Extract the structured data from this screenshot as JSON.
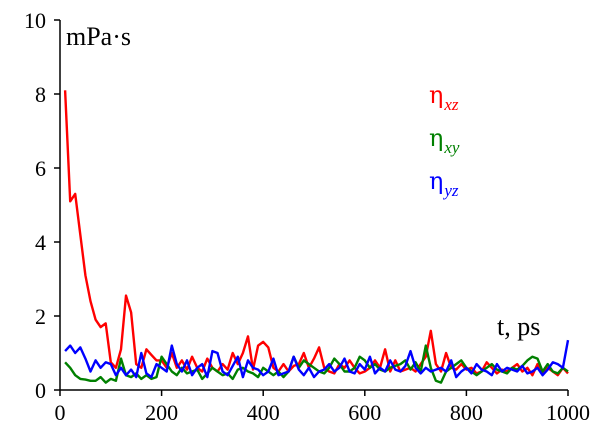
{
  "chart_data": {
    "type": "line",
    "title": "",
    "xlabel": "t, ps",
    "ylabel": "mPa·s",
    "xlim": [
      0,
      1000
    ],
    "ylim": [
      0,
      10
    ],
    "x_ticks": [
      "0",
      "200",
      "400",
      "600",
      "800",
      "1000"
    ],
    "y_ticks": [
      "0",
      "2",
      "4",
      "6",
      "8",
      "10"
    ],
    "grid": false,
    "legend_position": "right",
    "x": [
      10,
      20,
      30,
      40,
      50,
      60,
      70,
      80,
      90,
      100,
      110,
      120,
      130,
      140,
      150,
      160,
      170,
      180,
      190,
      200,
      210,
      220,
      230,
      240,
      250,
      260,
      270,
      280,
      290,
      300,
      310,
      320,
      330,
      340,
      350,
      360,
      370,
      380,
      390,
      400,
      410,
      420,
      430,
      440,
      450,
      460,
      470,
      480,
      490,
      500,
      510,
      520,
      530,
      540,
      550,
      560,
      570,
      580,
      590,
      600,
      610,
      620,
      630,
      640,
      650,
      660,
      670,
      680,
      690,
      700,
      710,
      720,
      730,
      740,
      750,
      760,
      770,
      780,
      790,
      800,
      810,
      820,
      830,
      840,
      850,
      860,
      870,
      880,
      890,
      900,
      910,
      920,
      930,
      940,
      950,
      960,
      970,
      980,
      990,
      1000
    ],
    "series": [
      {
        "name": "η",
        "subscript": "xz",
        "color": "#ff0000",
        "values": [
          8.1,
          5.1,
          5.3,
          4.2,
          3.1,
          2.4,
          1.9,
          1.7,
          1.8,
          0.75,
          0.6,
          1.1,
          2.55,
          2.1,
          0.7,
          0.6,
          1.1,
          0.95,
          0.8,
          0.8,
          0.6,
          1.0,
          0.6,
          0.8,
          0.55,
          0.9,
          0.6,
          0.5,
          0.85,
          0.6,
          0.5,
          0.7,
          0.55,
          1.0,
          0.7,
          1.0,
          1.45,
          0.55,
          1.2,
          1.3,
          1.15,
          0.6,
          0.5,
          0.7,
          0.5,
          0.65,
          0.7,
          1.0,
          0.6,
          0.85,
          1.15,
          0.6,
          0.5,
          0.45,
          0.7,
          0.6,
          0.8,
          0.6,
          0.45,
          0.5,
          0.6,
          0.8,
          0.6,
          1.1,
          0.5,
          0.8,
          0.5,
          0.55,
          0.6,
          0.5,
          0.7,
          0.9,
          1.6,
          0.7,
          0.5,
          1.0,
          0.6,
          0.55,
          0.7,
          0.55,
          0.6,
          0.45,
          0.5,
          0.75,
          0.6,
          0.45,
          0.55,
          0.5,
          0.6,
          0.7,
          0.5,
          0.6,
          0.4,
          0.7,
          0.45,
          0.6,
          0.5,
          0.4,
          0.6,
          0.45
        ]
      },
      {
        "name": "η",
        "subscript": "xy",
        "color": "#008000",
        "values": [
          0.75,
          0.6,
          0.4,
          0.3,
          0.28,
          0.25,
          0.25,
          0.35,
          0.2,
          0.3,
          0.25,
          0.85,
          0.4,
          0.35,
          0.45,
          0.3,
          0.4,
          0.3,
          0.35,
          0.9,
          0.7,
          0.5,
          0.4,
          0.6,
          0.45,
          0.5,
          0.55,
          0.3,
          0.45,
          0.6,
          0.5,
          0.4,
          0.45,
          0.3,
          0.55,
          0.6,
          0.5,
          0.45,
          0.35,
          0.6,
          0.5,
          0.4,
          0.5,
          0.35,
          0.5,
          0.9,
          0.6,
          0.8,
          0.7,
          0.6,
          0.5,
          0.45,
          0.6,
          0.85,
          0.7,
          0.5,
          0.5,
          0.6,
          0.9,
          0.8,
          0.6,
          0.7,
          0.55,
          0.5,
          0.6,
          0.65,
          0.7,
          0.8,
          0.55,
          0.75,
          0.5,
          1.2,
          0.6,
          0.25,
          0.2,
          0.5,
          0.6,
          0.7,
          0.8,
          0.6,
          0.5,
          0.4,
          0.5,
          0.6,
          0.7,
          0.55,
          0.5,
          0.45,
          0.6,
          0.55,
          0.65,
          0.8,
          0.9,
          0.85,
          0.5,
          0.7,
          0.5,
          0.45,
          0.6,
          0.5
        ]
      },
      {
        "name": "η",
        "subscript": "yz",
        "color": "#0000ff",
        "values": [
          1.05,
          1.2,
          1.0,
          1.15,
          0.85,
          0.5,
          0.8,
          0.6,
          0.75,
          0.7,
          0.4,
          0.6,
          0.4,
          0.55,
          0.35,
          1.0,
          0.45,
          0.35,
          0.7,
          0.6,
          0.5,
          1.2,
          0.7,
          0.5,
          0.8,
          0.4,
          0.6,
          0.7,
          0.35,
          1.05,
          1.0,
          0.5,
          0.4,
          0.65,
          0.9,
          0.35,
          0.8,
          0.6,
          0.55,
          0.4,
          0.5,
          0.85,
          0.4,
          0.45,
          0.5,
          0.9,
          0.55,
          0.4,
          0.6,
          0.35,
          0.5,
          0.55,
          0.7,
          0.5,
          0.6,
          0.85,
          0.5,
          0.45,
          0.7,
          0.55,
          0.9,
          0.45,
          0.6,
          0.5,
          0.8,
          0.55,
          0.5,
          0.65,
          1.05,
          0.6,
          0.45,
          0.6,
          0.5,
          0.55,
          0.6,
          0.5,
          0.8,
          0.35,
          0.5,
          0.6,
          0.45,
          0.7,
          0.55,
          0.5,
          0.4,
          0.7,
          0.5,
          0.6,
          0.55,
          0.5,
          0.65,
          0.45,
          0.5,
          0.6,
          0.4,
          0.55,
          0.75,
          0.7,
          0.6,
          1.35
        ]
      }
    ]
  }
}
